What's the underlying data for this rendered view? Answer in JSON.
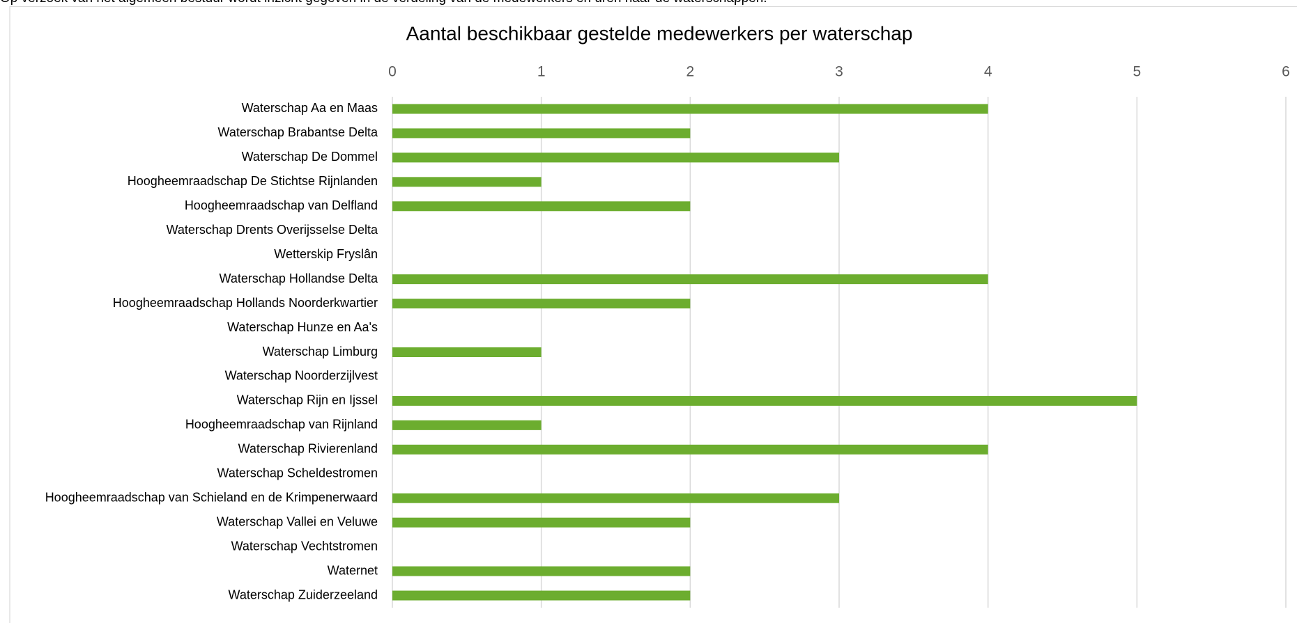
{
  "intro_text": "Op verzoek van het algemeen bestuur wordt inzicht gegeven in de verdeling van de medewerkers en uren naar de waterschappen.",
  "chart_data": {
    "type": "bar",
    "orientation": "horizontal",
    "title": "Aantal beschikbaar gestelde medewerkers per waterschap",
    "categories": [
      "Waterschap Aa en Maas",
      "Waterschap Brabantse Delta",
      "Waterschap De Dommel",
      "Hoogheemraadschap De Stichtse Rijnlanden",
      "Hoogheemraadschap van Delfland",
      "Waterschap Drents Overijsselse Delta",
      "Wetterskip Fryslân",
      "Waterschap Hollandse Delta",
      "Hoogheemraadschap Hollands Noorderkwartier",
      "Waterschap Hunze en Aa's",
      "Waterschap Limburg",
      "Waterschap Noorderzijlvest",
      "Waterschap Rijn en Ijssel",
      "Hoogheemraadschap van Rijnland",
      "Waterschap Rivierenland",
      "Waterschap Scheldestromen",
      "Hoogheemraadschap van Schieland en de Krimpenerwaard",
      "Waterschap Vallei en Veluwe",
      "Waterschap Vechtstromen",
      "Waternet",
      "Waterschap Zuiderzeeland"
    ],
    "values": [
      4,
      2,
      3,
      1,
      2,
      0,
      0,
      4,
      2,
      0,
      1,
      0,
      5,
      1,
      4,
      0,
      3,
      2,
      0,
      2,
      2
    ],
    "color": "#6cad2f",
    "xlim": [
      0,
      6
    ],
    "xticks": [
      0,
      1,
      2,
      3,
      4,
      5,
      6
    ],
    "grid": true
  }
}
